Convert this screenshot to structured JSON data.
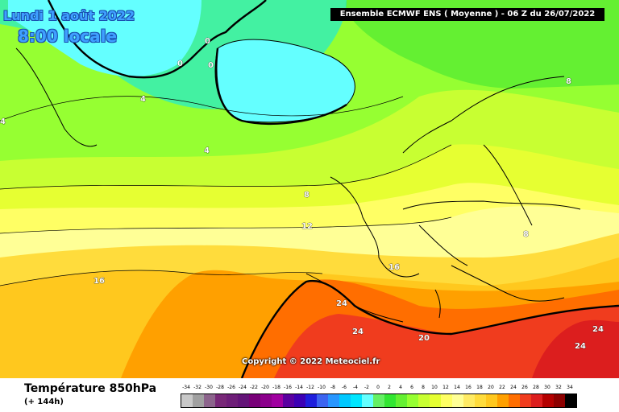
{
  "header": {
    "date": "Lundi 1 août 2022",
    "time": "8:00 locale",
    "run_info": "Ensemble ECMWF ENS  ( Moyenne )  - 06 Z du 26/07/2022"
  },
  "map": {
    "contour_labels": [
      "0",
      "0",
      "0",
      "4",
      "4",
      "4",
      "8",
      "8",
      "8",
      "12",
      "16",
      "16",
      "20",
      "24",
      "24",
      "24",
      "24"
    ],
    "copyright": "Copyright © 2022 Meteociel.fr"
  },
  "footer": {
    "title": "Température 850hPa",
    "lead": "(+ 144h)"
  },
  "legend": {
    "values": [
      "-34",
      "-32",
      "-30",
      "-28",
      "-26",
      "-24",
      "-22",
      "-20",
      "-18",
      "-16",
      "-14",
      "-12",
      "-10",
      "-8",
      "-6",
      "-4",
      "-2",
      "0",
      "2",
      "4",
      "6",
      "8",
      "10",
      "12",
      "14",
      "16",
      "18",
      "20",
      "22",
      "24",
      "26",
      "28",
      "30",
      "32",
      "34"
    ],
    "colors": [
      "#c8c8c8",
      "#a0a0a0",
      "#8c648c",
      "#782878",
      "#6e1e78",
      "#641478",
      "#780078",
      "#8c008c",
      "#a000a0",
      "#5a00a0",
      "#3c00b4",
      "#1e1edc",
      "#3c64f0",
      "#2896ff",
      "#00c8ff",
      "#00e6ff",
      "#64ffff",
      "#64f064",
      "#32e632",
      "#64f032",
      "#96ff32",
      "#c8ff32",
      "#e6ff32",
      "#ffff64",
      "#ffff96",
      "#ffeb64",
      "#ffdc3c",
      "#ffc81e",
      "#ffa000",
      "#ff6e00",
      "#f03c1e",
      "#dc1e1e",
      "#b40000",
      "#8c0000",
      "#000000"
    ]
  }
}
